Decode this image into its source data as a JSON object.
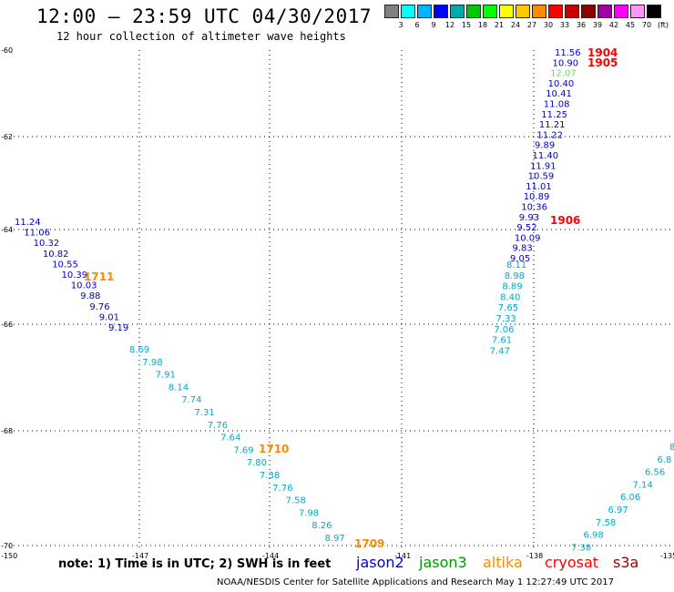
{
  "header": {
    "title": "12:00 – 23:59 UTC 04/30/2017",
    "subtitle": "12 hour collection of altimeter wave heights"
  },
  "legend": {
    "colors": [
      "#808080",
      "#00ffff",
      "#00b4ff",
      "#0000ff",
      "#00aaaa",
      "#00c800",
      "#00ff00",
      "#ffff00",
      "#ffc800",
      "#ff8c00",
      "#ff0000",
      "#c80000",
      "#8c0000",
      "#a000a0",
      "#ff00ff",
      "#ff96ff",
      "#000000"
    ],
    "labels": [
      "3",
      "6",
      "9",
      "12",
      "15",
      "18",
      "21",
      "24",
      "27",
      "30",
      "33",
      "36",
      "39",
      "42",
      "45",
      "70",
      "(ft)"
    ]
  },
  "axes": {
    "lat_labels": [
      "-60",
      "-62",
      "-64",
      "-66",
      "-68",
      "-70"
    ],
    "lon_labels": [
      "-150",
      "-147",
      "-144",
      "-141",
      "-138",
      "-135"
    ]
  },
  "colors": {
    "jason2": "#0000cc",
    "jason3": "#009900",
    "altika": "#ff8800",
    "cryosat": "#ff0000",
    "s3a": "#990000",
    "cyan": "#00aacc",
    "lightgreen": "#66dd66"
  },
  "tracks": [
    {
      "name": "jason2-left",
      "values": [
        "11.24",
        "11.06",
        "10.32",
        "10.82",
        "10.55",
        "10.39",
        "10.03",
        "9.88",
        "9.76",
        "9.01",
        "9.19"
      ]
    },
    {
      "name": "cyan-left",
      "values": [
        "8.69",
        "7.98",
        "7.91",
        "8.14",
        "7.74",
        "7.31",
        "7.76",
        "7.64",
        "7.69",
        "7.80",
        "7.38",
        "7.76",
        "7.58",
        "7.98",
        "8.26",
        "8.97"
      ]
    },
    {
      "name": "jason2-right",
      "values": [
        "11.56",
        "10.90",
        "12.07",
        "10.40",
        "10.41",
        "11.08",
        "11.25",
        "11.21",
        "11.22",
        "9.89",
        "11.40",
        "11.91",
        "10.59",
        "11.01",
        "10.89",
        "10.36",
        "9.93",
        "9.52",
        "10.09",
        "9.83",
        "9.05"
      ]
    },
    {
      "name": "cyan-right",
      "values": [
        "8.11",
        "8.98",
        "8.89",
        "8.40",
        "7.65",
        "7.33",
        "7.06",
        "7.61",
        "7.47"
      ]
    },
    {
      "name": "cyan-lower-right",
      "values": [
        "8",
        "6.8",
        "6.56",
        "7.14",
        "6.06",
        "6.97",
        "7.58",
        "6.98",
        "7.38"
      ]
    }
  ],
  "pass_labels": [
    {
      "text": "1711",
      "sat": "altika"
    },
    {
      "text": "1710",
      "sat": "altika"
    },
    {
      "text": "1709",
      "sat": "altika"
    },
    {
      "text": "1904",
      "sat": "cryosat"
    },
    {
      "text": "1905",
      "sat": "cryosat"
    },
    {
      "text": "1906",
      "sat": "cryosat"
    }
  ],
  "footer": {
    "note": "note: 1) Time is in UTC; 2) SWH is in feet",
    "satellites": [
      "jason2",
      "jason3",
      "altika",
      "cryosat",
      "s3a"
    ],
    "credit": "NOAA/NESDIS Center for Satellite Applications and Research    May  1 12:27:49 UTC 2017"
  }
}
